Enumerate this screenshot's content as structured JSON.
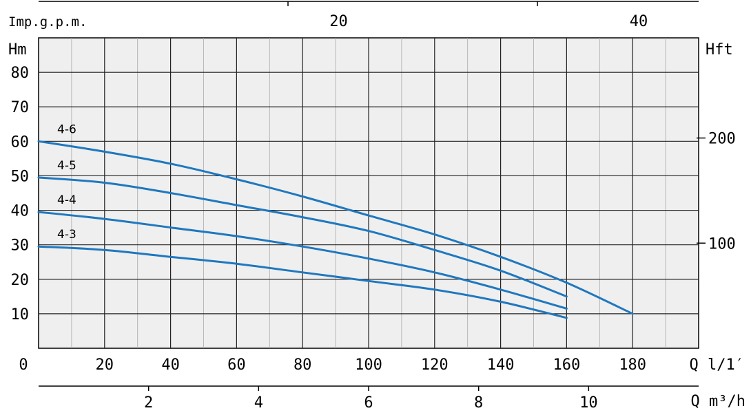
{
  "chart_data": {
    "type": "line",
    "title": "",
    "xlabel": "Q l/1′",
    "ylabel": "Hm",
    "y2label": "Hft",
    "top_axis_label": "Imp.g.p.m.",
    "bottom_axis2_label": "Q m³/h",
    "xlim": [
      0,
      200
    ],
    "ylim": [
      0,
      90
    ],
    "grid": true,
    "x_ticks": [
      0,
      20,
      40,
      60,
      80,
      100,
      120,
      140,
      160,
      180
    ],
    "x_tick_labels": [
      "0",
      "20",
      "40",
      "60",
      "80",
      "100",
      "120",
      "140",
      "160",
      "180"
    ],
    "y_ticks": [
      10,
      20,
      30,
      40,
      50,
      60,
      70,
      80
    ],
    "y_tick_labels": [
      "10",
      "20",
      "30",
      "40",
      "50",
      "60",
      "70",
      "80"
    ],
    "y2_ticks": [
      100,
      200
    ],
    "y2_tick_labels": [
      "100",
      "200"
    ],
    "top_ticks": [
      20,
      40
    ],
    "top_tick_labels": [
      "20",
      "40"
    ],
    "m3h_ticks": [
      2,
      4,
      6,
      8,
      10
    ],
    "m3h_tick_labels": [
      "2",
      "4",
      "6",
      "8",
      "10"
    ],
    "series_color": "#1f78bf",
    "series": [
      {
        "name": "4-6",
        "x": [
          0,
          20,
          40,
          60,
          80,
          100,
          120,
          140,
          160,
          180
        ],
        "y": [
          60,
          57,
          53.5,
          49,
          44,
          38.5,
          33,
          26.5,
          19,
          10
        ]
      },
      {
        "name": "4-5",
        "x": [
          0,
          20,
          40,
          60,
          80,
          100,
          120,
          140,
          160
        ],
        "y": [
          49.5,
          48,
          45,
          41.5,
          38,
          34,
          28.5,
          22.5,
          15
        ]
      },
      {
        "name": "4-4",
        "x": [
          0,
          20,
          40,
          60,
          80,
          100,
          120,
          140,
          160
        ],
        "y": [
          39.5,
          37.5,
          35,
          32.5,
          29.5,
          26,
          22,
          17,
          11.5
        ]
      },
      {
        "name": "4-3",
        "x": [
          0,
          20,
          40,
          60,
          80,
          100,
          120,
          140,
          160
        ],
        "y": [
          29.5,
          28.5,
          26.5,
          24.5,
          22,
          19.5,
          17,
          13.5,
          8.8
        ]
      }
    ]
  }
}
